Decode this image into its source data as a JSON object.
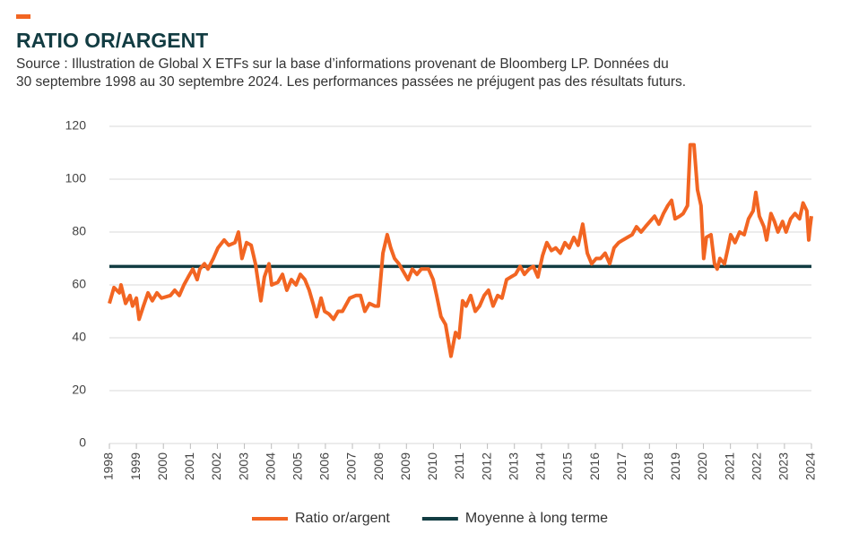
{
  "chart_data": {
    "type": "line",
    "title": "RATIO OR/ARGENT",
    "subtitle": [
      "Source : Illustration de Global X ETFs sur la base d’informations provenant de Bloomberg LP. Données du",
      "30 septembre 1998 au 30 septembre 2024. Les performances passées ne préjugent pas des résultats futurs."
    ],
    "xlim": [
      1998,
      2024
    ],
    "xticks": [
      1998,
      1999,
      2000,
      2001,
      2002,
      2003,
      2004,
      2005,
      2006,
      2007,
      2008,
      2009,
      2010,
      2011,
      2012,
      2013,
      2014,
      2015,
      2016,
      2017,
      2018,
      2019,
      2020,
      2021,
      2022,
      2023,
      2024
    ],
    "ylim": [
      0,
      120
    ],
    "yticks": [
      0,
      20,
      40,
      60,
      80,
      100,
      120
    ],
    "grid": true,
    "legend": "bottom",
    "series": [
      {
        "name": "Ratio or/argent",
        "color": "#f26522",
        "x": [
          1998.0,
          1998.17,
          1998.37,
          1998.43,
          1998.6,
          1998.76,
          1998.86,
          1999.0,
          1999.1,
          1999.26,
          1999.43,
          1999.59,
          1999.76,
          1999.93,
          2000.26,
          2000.42,
          2000.59,
          2000.76,
          2000.92,
          2001.09,
          2001.25,
          2001.35,
          2001.52,
          2001.65,
          2001.85,
          2002.02,
          2002.25,
          2002.42,
          2002.65,
          2002.78,
          2002.91,
          2003.08,
          2003.25,
          2003.41,
          2003.61,
          2003.74,
          2003.91,
          2004.01,
          2004.24,
          2004.41,
          2004.57,
          2004.74,
          2004.91,
          2005.07,
          2005.24,
          2005.4,
          2005.57,
          2005.67,
          2005.84,
          2005.97,
          2006.13,
          2006.3,
          2006.47,
          2006.63,
          2006.9,
          2007.13,
          2007.3,
          2007.46,
          2007.63,
          2007.83,
          2007.96,
          2008.13,
          2008.29,
          2008.42,
          2008.56,
          2008.72,
          2008.89,
          2009.06,
          2009.22,
          2009.39,
          2009.55,
          2009.82,
          2009.99,
          2010.12,
          2010.28,
          2010.45,
          2010.65,
          2010.82,
          2010.95,
          2011.08,
          2011.21,
          2011.38,
          2011.55,
          2011.71,
          2011.88,
          2012.04,
          2012.21,
          2012.38,
          2012.54,
          2012.71,
          2012.87,
          2013.04,
          2013.21,
          2013.37,
          2013.54,
          2013.7,
          2013.87,
          2014.04,
          2014.2,
          2014.37,
          2014.53,
          2014.7,
          2014.87,
          2015.03,
          2015.2,
          2015.36,
          2015.53,
          2015.7,
          2015.86,
          2016.03,
          2016.19,
          2016.36,
          2016.53,
          2016.69,
          2016.86,
          2017.02,
          2017.19,
          2017.36,
          2017.52,
          2017.69,
          2017.85,
          2018.02,
          2018.19,
          2018.35,
          2018.52,
          2018.68,
          2018.82,
          2018.95,
          2019.12,
          2019.25,
          2019.41,
          2019.51,
          2019.65,
          2019.78,
          2019.91,
          2020.01,
          2020.11,
          2020.28,
          2020.41,
          2020.51,
          2020.61,
          2020.78,
          2020.91,
          2021.01,
          2021.17,
          2021.34,
          2021.51,
          2021.67,
          2021.84,
          2021.94,
          2022.07,
          2022.24,
          2022.34,
          2022.5,
          2022.63,
          2022.76,
          2022.93,
          2023.06,
          2023.23,
          2023.39,
          2023.56,
          2023.69,
          2023.83,
          2023.9,
          2023.95,
          2024.0
        ],
        "values": [
          53,
          59,
          57,
          60,
          53,
          56,
          52,
          55,
          47,
          52,
          57,
          54,
          57,
          55,
          56,
          58,
          56,
          60,
          63,
          66,
          62,
          66,
          68,
          66,
          70,
          74,
          77,
          75,
          76,
          80,
          70,
          76,
          75,
          68,
          54,
          63,
          68,
          60,
          61,
          64,
          58,
          62,
          60,
          64,
          62,
          58,
          52,
          48,
          55,
          50,
          49,
          47,
          50,
          50,
          55,
          56,
          56,
          50,
          53,
          52,
          52,
          72,
          79,
          74,
          70,
          68,
          65,
          62,
          66,
          64,
          66,
          66,
          62,
          56,
          48,
          45,
          33,
          42,
          40,
          54,
          52,
          56,
          50,
          52,
          56,
          58,
          52,
          56,
          55,
          62,
          63,
          64,
          67,
          64,
          66,
          67,
          63,
          71,
          76,
          73,
          74,
          72,
          76,
          74,
          78,
          75,
          83,
          72,
          68,
          70,
          70,
          72,
          68,
          74,
          76,
          77,
          78,
          79,
          82,
          80,
          82,
          84,
          86,
          83,
          87,
          90,
          92,
          85,
          86,
          87,
          90,
          113,
          113,
          96,
          90,
          70,
          78,
          79,
          68,
          66,
          70,
          68,
          74,
          79,
          76,
          80,
          79,
          85,
          88,
          95,
          86,
          82,
          77,
          87,
          84,
          80,
          84,
          80,
          85,
          87,
          85,
          91,
          88,
          77,
          82,
          86
        ]
      },
      {
        "name": "Moyenne à long terme",
        "color": "#123c42",
        "x": [
          1998,
          2024
        ],
        "values": [
          67,
          67
        ]
      }
    ]
  }
}
